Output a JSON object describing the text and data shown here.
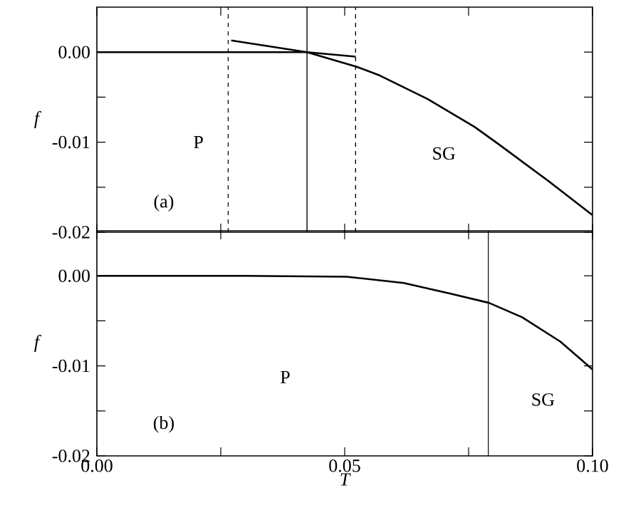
{
  "chart_data": [
    {
      "type": "line",
      "ylabel": "f",
      "xlim": [
        0,
        0.1
      ],
      "ylim": [
        -0.02,
        0.005
      ],
      "tick_labels": "y",
      "line_style": "solid",
      "marker": "none",
      "grid": false,
      "xticks": [
        {
          "value": 0,
          "label": null
        },
        {
          "value": 0.025,
          "label": null
        },
        {
          "value": 0.05,
          "label": null
        },
        {
          "value": 0.075,
          "label": null
        },
        {
          "value": 0.1,
          "label": null
        }
      ],
      "yticks": [
        {
          "value": 0,
          "label": "0.00"
        },
        {
          "value": -0.005,
          "label": null
        },
        {
          "value": -0.01,
          "label": "-0.01"
        },
        {
          "value": -0.015,
          "label": null
        },
        {
          "value": -0.02,
          "label": "-0.02"
        }
      ],
      "series": [
        {
          "color": "#000000",
          "x": [
            0,
            0.0424,
            0.0522
          ],
          "values": [
            0,
            0,
            -0.0005
          ]
        },
        {
          "color": "#000000",
          "x": [
            0.0271,
            0.0424,
            0.0523,
            0.0571,
            0.0667,
            0.0762,
            0.081,
            0.0906,
            0.1
          ],
          "values": [
            0.0013,
            0,
            -0.0016,
            -0.0026,
            -0.0052,
            -0.0083,
            -0.0102,
            -0.0141,
            -0.0181
          ]
        }
      ],
      "ref_lines": [
        {
          "axis": "x",
          "value": 0.0265,
          "color": "#000000",
          "line_style": "dashed"
        },
        {
          "axis": "x",
          "value": 0.0424,
          "color": "#000000",
          "line_style": "solid"
        },
        {
          "axis": "x",
          "value": 0.0522,
          "color": "#000000",
          "line_style": "dashed"
        }
      ],
      "annotations": [
        "P",
        "SG",
        "(a)"
      ]
    },
    {
      "type": "line",
      "xlabel": "T",
      "ylabel": "f",
      "xlim": [
        0,
        0.1
      ],
      "ylim": [
        -0.02,
        0.005
      ],
      "line_style": "solid",
      "marker": "none",
      "grid": false,
      "xticks": [
        {
          "value": 0,
          "label": "0.00"
        },
        {
          "value": 0.025,
          "label": null
        },
        {
          "value": 0.05,
          "label": "0.05"
        },
        {
          "value": 0.075,
          "label": null
        },
        {
          "value": 0.1,
          "label": "0.10"
        }
      ],
      "yticks": [
        {
          "value": 0,
          "label": "0.00"
        },
        {
          "value": -0.005,
          "label": null
        },
        {
          "value": -0.01,
          "label": "-0.01"
        },
        {
          "value": -0.015,
          "label": null
        },
        {
          "value": -0.02,
          "label": "-0.02"
        }
      ],
      "series": [
        {
          "color": "#000000",
          "x": [
            0,
            0.03,
            0.0504,
            0.0619,
            0.0715,
            0.0791,
            0.0858,
            0.0935,
            0.1
          ],
          "values": [
            0,
            0,
            -0.0001,
            -0.0008,
            -0.002,
            -0.003,
            -0.0046,
            -0.0073,
            -0.0104
          ]
        }
      ],
      "ref_lines": [
        {
          "axis": "x",
          "value": 0.079,
          "color": "#000000",
          "line_style": "solid"
        }
      ],
      "annotations": [
        "P",
        "SG",
        "(b)"
      ]
    }
  ]
}
